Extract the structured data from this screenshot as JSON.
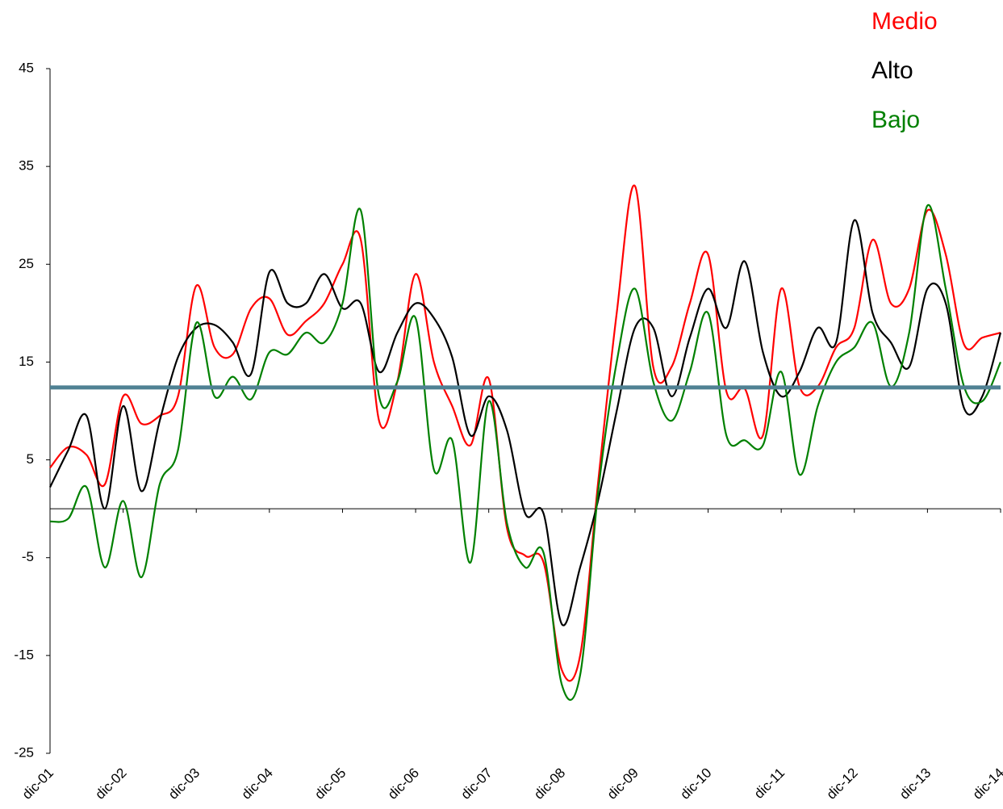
{
  "chart_data": {
    "type": "line",
    "categories": [
      "dic-01",
      null,
      null,
      null,
      "dic-02",
      null,
      null,
      null,
      "dic-03",
      null,
      null,
      null,
      "dic-04",
      null,
      null,
      null,
      "dic-05",
      null,
      null,
      null,
      "dic-06",
      null,
      null,
      null,
      "dic-07",
      null,
      null,
      null,
      "dic-08",
      null,
      null,
      null,
      "dic-09",
      null,
      null,
      null,
      "dic-10",
      null,
      null,
      null,
      "dic-11",
      null,
      null,
      null,
      "dic-12",
      null,
      null,
      null,
      "dic-13",
      null,
      null,
      null,
      "dic-14"
    ],
    "series": [
      {
        "name": "Medio",
        "color": "#ff0000",
        "values": [
          4.2,
          6.3,
          5.5,
          2.5,
          11.5,
          8.7,
          9.5,
          11.5,
          22.8,
          16.5,
          15.8,
          20.5,
          21.5,
          17.8,
          19.2,
          21,
          25,
          27.5,
          9,
          13,
          24,
          15,
          10.5,
          6.5,
          13.3,
          -2,
          -4.8,
          -5.5,
          -16.5,
          -15,
          3,
          20,
          33,
          14.5,
          14.5,
          21,
          26,
          12,
          12.3,
          7.5,
          22.5,
          12.5,
          12.5,
          16.5,
          18.5,
          27.5,
          21,
          22.5,
          30.5,
          26,
          16.8,
          17.5,
          18
        ]
      },
      {
        "name": "Alto",
        "color": "#000000",
        "values": [
          2.2,
          6,
          9.5,
          0,
          10.5,
          1.8,
          9,
          15.5,
          18.5,
          18.8,
          17,
          13.8,
          24.2,
          21,
          21,
          24,
          20.5,
          21,
          14,
          18,
          21,
          19.5,
          15.5,
          7.5,
          11.5,
          8,
          -0.5,
          -0.5,
          -11.8,
          -6,
          1,
          10,
          18.5,
          18.5,
          11.5,
          17.5,
          22.5,
          18.5,
          25.3,
          16,
          11.5,
          14,
          18.5,
          17,
          29.5,
          20,
          17,
          14.5,
          22.5,
          21,
          10.3,
          11.5,
          18
        ]
      },
      {
        "name": "Bajo",
        "color": "#008000",
        "values": [
          -1.3,
          -1,
          2.2,
          -6,
          0.8,
          -7,
          2.5,
          6,
          19,
          11.5,
          13.5,
          11.2,
          16,
          15.8,
          18,
          17,
          21,
          30.5,
          11.5,
          13,
          19.5,
          4,
          7,
          -5.5,
          11,
          -1.5,
          -6,
          -4.5,
          -18,
          -17,
          2,
          15,
          22.5,
          13,
          9,
          14,
          20,
          7.5,
          7,
          6.5,
          14,
          3.5,
          10.5,
          15,
          16.5,
          19,
          12.5,
          18,
          31,
          22.5,
          12.5,
          11,
          15
        ]
      }
    ],
    "reference_line": {
      "value": 12.4,
      "color": "#4f8193"
    },
    "ylim": [
      -25,
      45
    ],
    "yticks": [
      -25,
      -15,
      -5,
      5,
      15,
      25,
      35,
      45
    ]
  }
}
